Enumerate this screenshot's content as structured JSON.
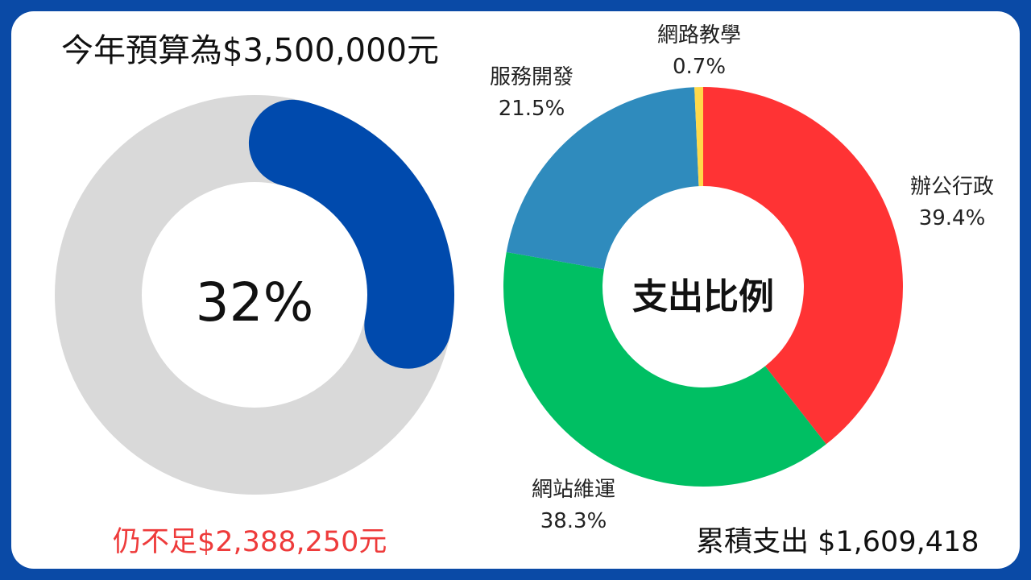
{
  "budget_title": "今年預算為$3,500,000元",
  "shortfall_text": "仍不足$2,388,250元",
  "cumulative_text": "累積支出 $1,609,418",
  "chart_data": [
    {
      "type": "pie",
      "variant": "progress-donut",
      "center_label": "32%",
      "value_percent": 32,
      "colors": {
        "progress": "#004aad",
        "track": "#d9d9d9"
      }
    },
    {
      "type": "pie",
      "variant": "donut",
      "title": "支出比例",
      "slices": [
        {
          "label": "辦公行政",
          "value": 39.4,
          "value_label": "39.4%",
          "color": "#ff3334"
        },
        {
          "label": "網站維運",
          "value": 38.3,
          "value_label": "38.3%",
          "color": "#00bf63"
        },
        {
          "label": "服務開發",
          "value": 21.5,
          "value_label": "21.5%",
          "color": "#2f8bbd"
        },
        {
          "label": "網路教學",
          "value": 0.7,
          "value_label": "0.7%",
          "color": "#ffd94a"
        }
      ]
    }
  ]
}
